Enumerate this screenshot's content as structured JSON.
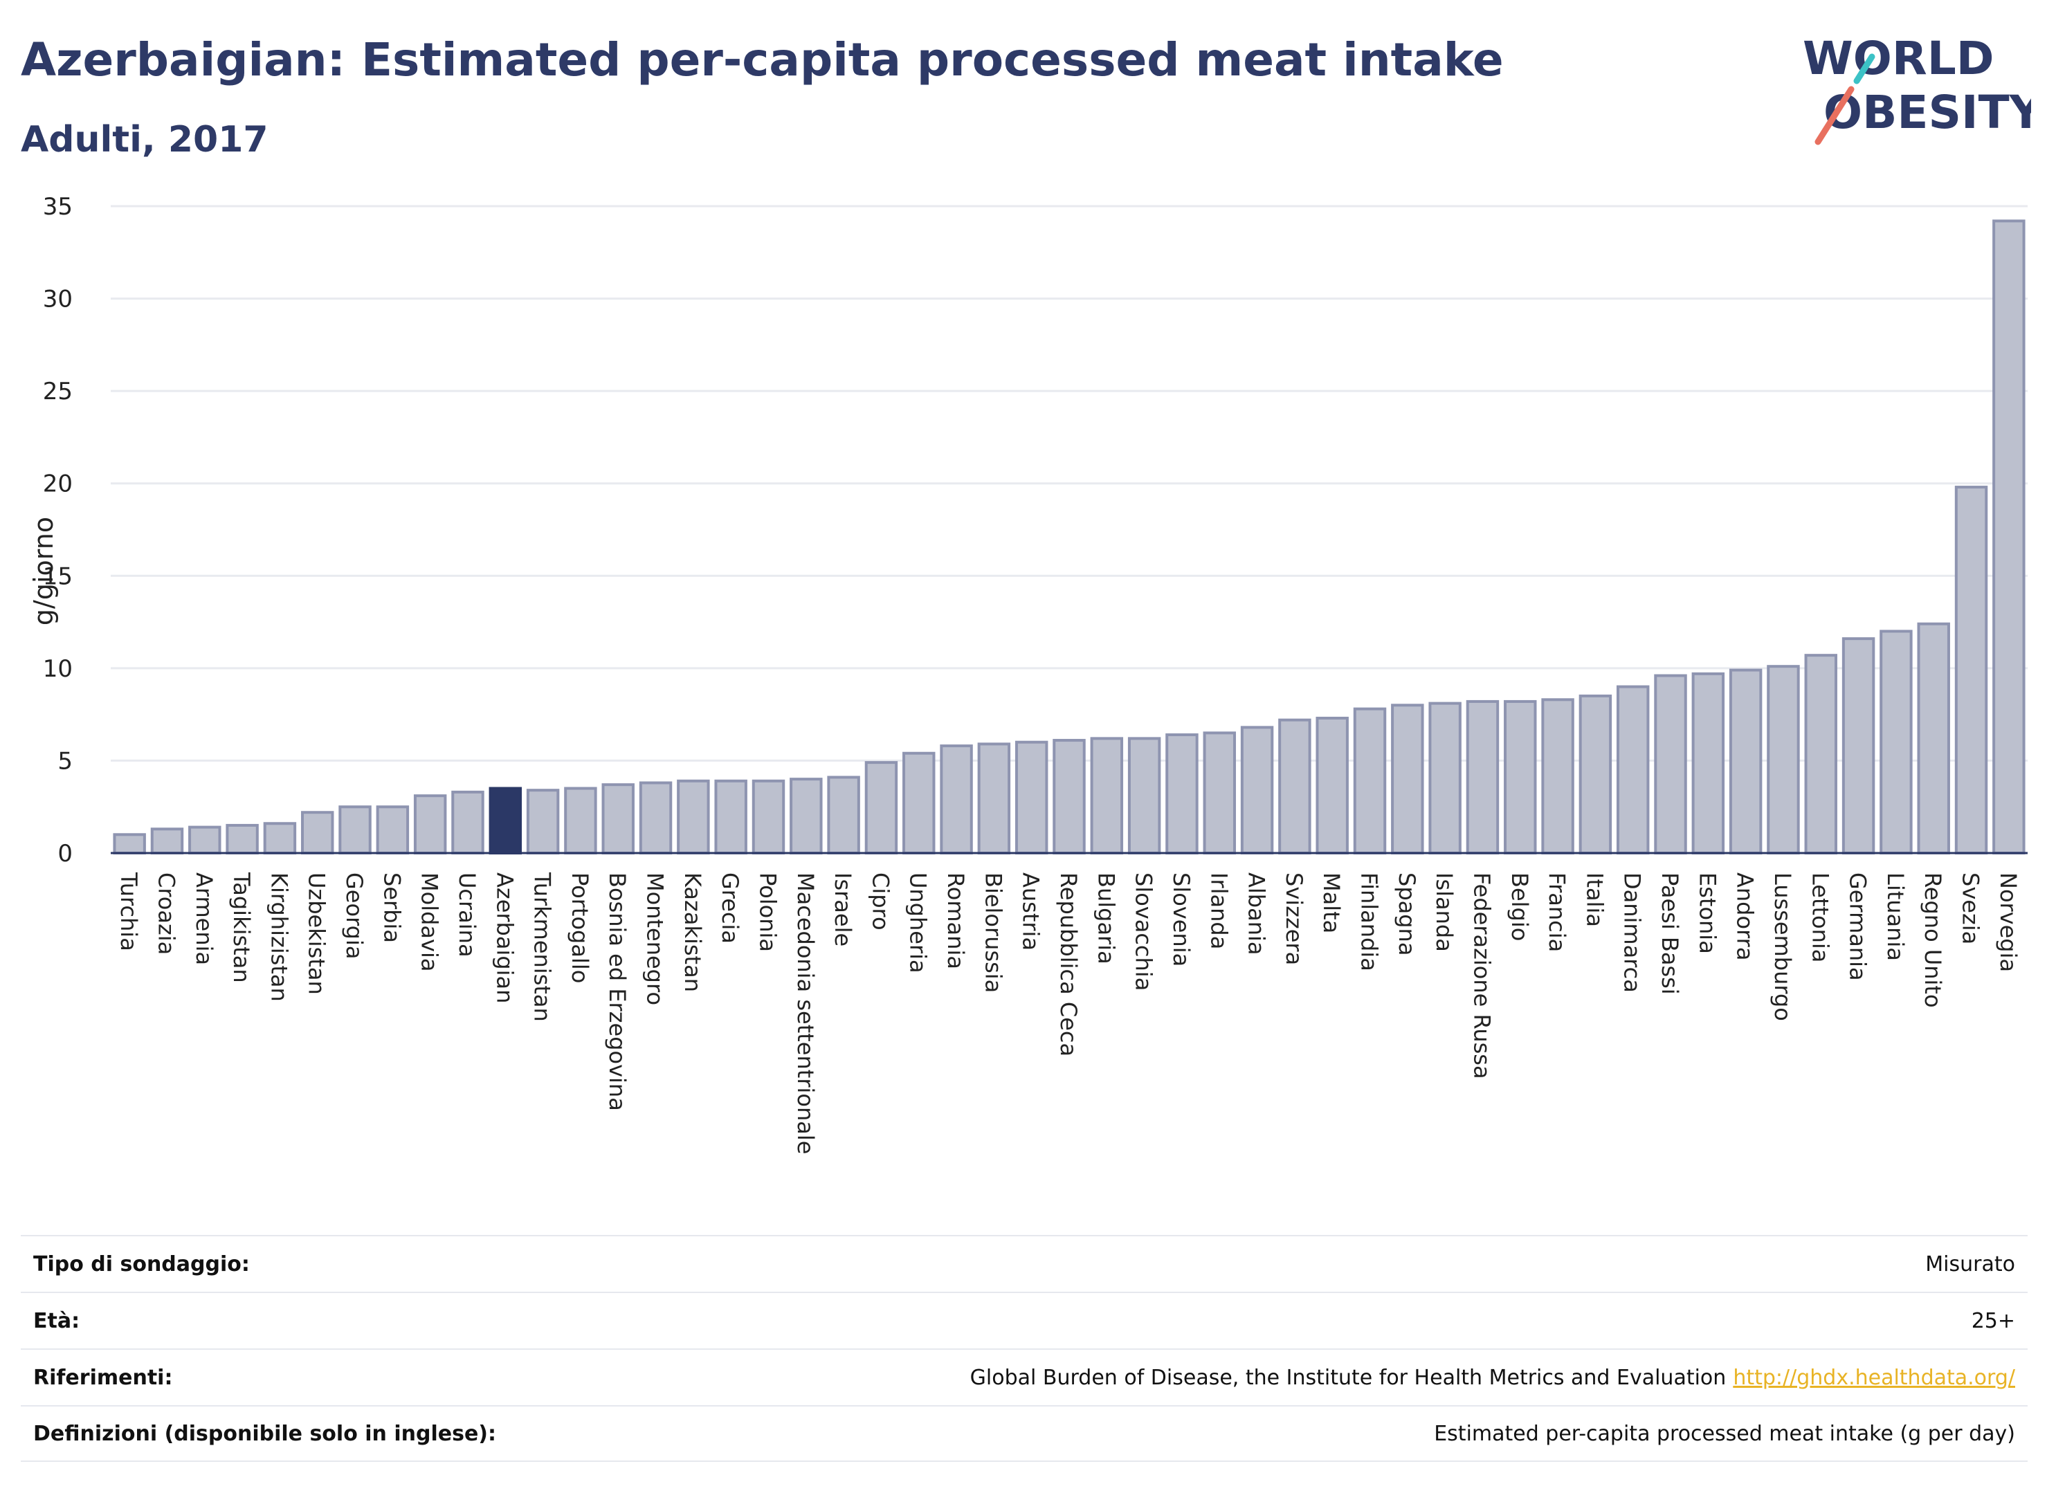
{
  "header": {
    "title": "Azerbaigian: Estimated per-capita processed meat intake",
    "subtitle": "Adulti, 2017"
  },
  "logo": {
    "line1": "WORLD",
    "line2": "OBESITY"
  },
  "colors": {
    "bar": "#bcc0ce",
    "bar_border": "#8e94b0",
    "highlight": "#2b3866",
    "grid": "#e8eaef",
    "axis": "#2b3866"
  },
  "chart_data": {
    "type": "bar",
    "title": "Azerbaigian: Estimated per-capita processed meat intake",
    "subtitle": "Adulti, 2017",
    "xlabel": "",
    "ylabel": "g/giorno",
    "ylim": [
      0,
      35
    ],
    "yticks": [
      0,
      5,
      10,
      15,
      20,
      25,
      30,
      35
    ],
    "grid": true,
    "highlight": "Azerbaigian",
    "categories": [
      "Turchia",
      "Croazia",
      "Armenia",
      "Tagikistan",
      "Kirghizistan",
      "Uzbekistan",
      "Georgia",
      "Serbia",
      "Moldavia",
      "Ucraina",
      "Azerbaigian",
      "Turkmenistan",
      "Portogallo",
      "Bosnia ed Erzegovina",
      "Montenegro",
      "Kazakistan",
      "Grecia",
      "Polonia",
      "Macedonia settentrionale",
      "Israele",
      "Cipro",
      "Ungheria",
      "Romania",
      "Bielorussia",
      "Austria",
      "Repubblica Ceca",
      "Bulgaria",
      "Slovacchia",
      "Slovenia",
      "Irlanda",
      "Albania",
      "Svizzera",
      "Malta",
      "Finlandia",
      "Spagna",
      "Islanda",
      "Federazione Russa",
      "Belgio",
      "Francia",
      "Italia",
      "Danimarca",
      "Paesi Bassi",
      "Estonia",
      "Andorra",
      "Lussemburgo",
      "Lettonia",
      "Germania",
      "Lituania",
      "Regno Unito",
      "Svezia",
      "Norvegia"
    ],
    "values": [
      1.0,
      1.3,
      1.4,
      1.5,
      1.6,
      2.2,
      2.5,
      2.5,
      3.1,
      3.3,
      3.5,
      3.4,
      3.5,
      3.7,
      3.8,
      3.9,
      3.9,
      3.9,
      4.0,
      4.1,
      4.9,
      5.4,
      5.8,
      5.9,
      6.0,
      6.1,
      6.2,
      6.2,
      6.4,
      6.5,
      6.8,
      7.2,
      7.3,
      7.8,
      8.0,
      8.1,
      8.2,
      8.2,
      8.3,
      8.5,
      9.0,
      9.6,
      9.7,
      9.9,
      10.1,
      10.7,
      11.6,
      12.0,
      12.4,
      19.8,
      34.2
    ]
  },
  "info": {
    "survey_type_label": "Tipo di sondaggio:",
    "survey_type_value": "Misurato",
    "age_label": "Età:",
    "age_value": "25+",
    "refs_label": "Riferimenti:",
    "refs_value": "Global Burden of Disease, the Institute for Health Metrics and Evaluation",
    "refs_link": "http://ghdx.healthdata.org/",
    "defs_label": "Definizioni (disponibile solo in inglese):",
    "defs_value": "Estimated per-capita processed meat intake (g per day)"
  }
}
